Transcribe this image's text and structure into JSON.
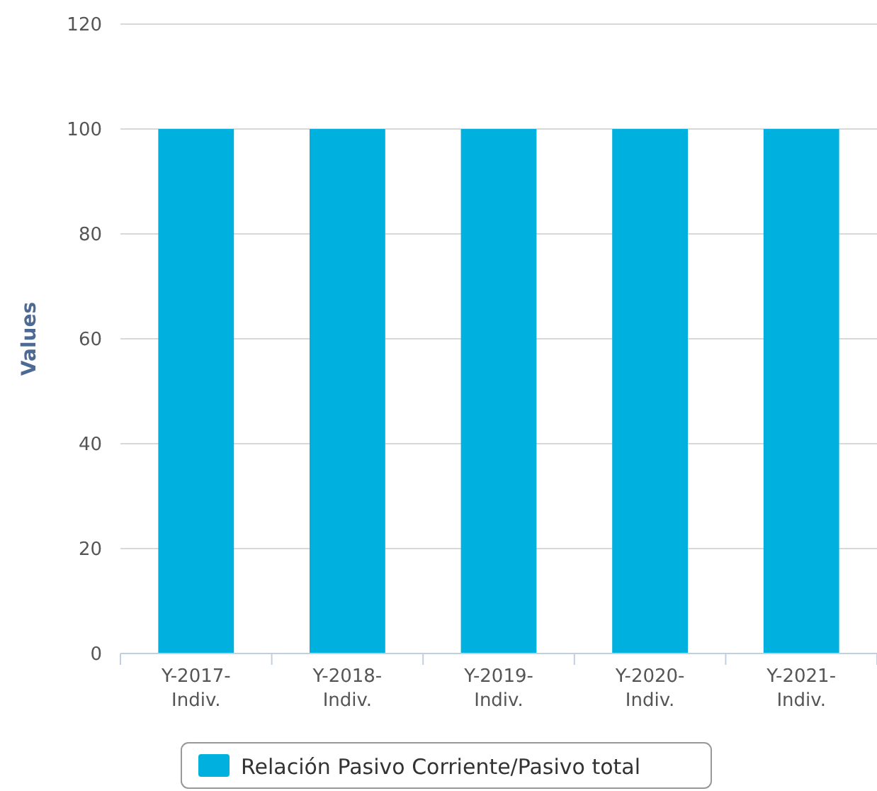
{
  "chart_data": {
    "type": "bar",
    "ylabel": "Values",
    "categories": [
      "Y-2017-Indiv.",
      "Y-2018-Indiv.",
      "Y-2019-Indiv.",
      "Y-2020-Indiv.",
      "Y-2021-Indiv."
    ],
    "series": [
      {
        "name": "Relación Pasivo Corriente/Pasivo total",
        "color": "#00b0de",
        "values": [
          100,
          100,
          100,
          100,
          100
        ]
      }
    ],
    "ylim": [
      0,
      120
    ],
    "yticks": [
      0,
      20,
      40,
      60,
      80,
      100,
      120
    ],
    "grid": "y",
    "legend": "bottom"
  }
}
